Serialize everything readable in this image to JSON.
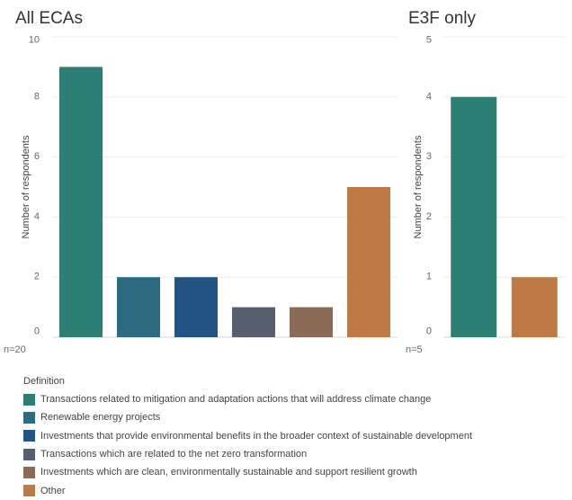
{
  "chart_data": [
    {
      "type": "bar",
      "title": "All ECAs",
      "ylabel": "Number of respondents",
      "ylim": [
        0,
        10
      ],
      "yticks": [
        0,
        2,
        4,
        6,
        8,
        10
      ],
      "grid": true,
      "note": "n=20",
      "categories": [
        "Transactions related to mitigation and adaptation actions that will address climate change",
        "Renewable energy projects",
        "Investments that provide environmental benefits in the broader context of sustainable development",
        "Transactions which are related to the net zero transformation",
        "Investments which are clean, environmentally sustainable and support resilient growth",
        "Other"
      ],
      "values": [
        9,
        2,
        2,
        1,
        1,
        5
      ]
    },
    {
      "type": "bar",
      "title": "E3F only",
      "ylabel": "Number of respondents",
      "ylim": [
        0,
        5
      ],
      "yticks": [
        0,
        1,
        2,
        3,
        4,
        5
      ],
      "grid": true,
      "note": "n=5",
      "categories": [
        "Transactions related to mitigation and adaptation actions that will address climate change",
        "Other"
      ],
      "values": [
        4,
        1
      ]
    }
  ],
  "legend": {
    "title": "Definition",
    "placement": "bottom-left",
    "items": [
      {
        "label": "Transactions related to mitigation and adaptation actions that will address climate change",
        "color": "#2e7f73"
      },
      {
        "label": "Renewable energy projects",
        "color": "#2d6b80"
      },
      {
        "label": "Investments that provide environmental benefits in the broader context of sustainable development",
        "color": "#245482"
      },
      {
        "label": "Transactions which are related to the net zero transformation",
        "color": "#575e6e"
      },
      {
        "label": "Investments which are clean, environmentally sustainable and support resilient growth",
        "color": "#8a6b58"
      },
      {
        "label": "Other",
        "color": "#bd7a44"
      }
    ]
  }
}
